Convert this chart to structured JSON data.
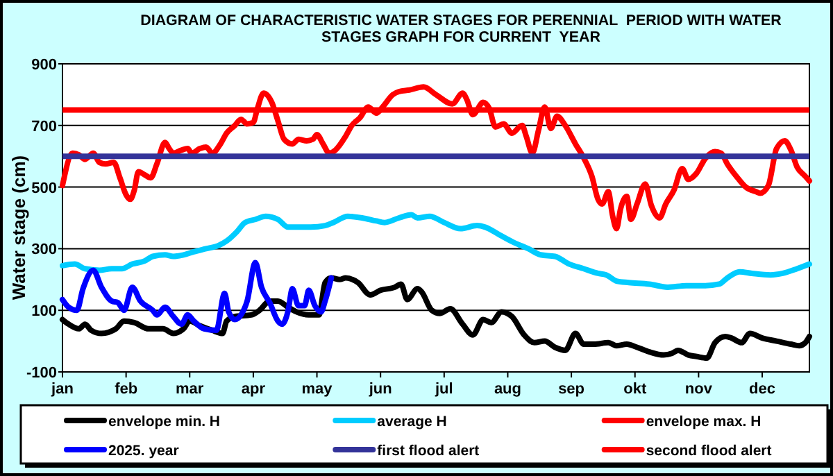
{
  "chart_data": {
    "type": "line",
    "title": "DIAGRAM OF CHARACTERISTIC WATER STAGES FOR PERENNIAL  PERIOD WITH WATER STAGES GRAPH FOR CURRENT  YEAR",
    "ylabel": "Water stage (cm)",
    "xlim": [
      "--01-01",
      "--12-31"
    ],
    "xticks": [
      {
        "value": "--01-01",
        "label": "jan"
      },
      {
        "value": "--02-01",
        "label": "feb"
      },
      {
        "value": "--03-04",
        "label": "mar"
      },
      {
        "value": "--04-04",
        "label": "apr"
      },
      {
        "value": "--05-05",
        "label": "may"
      },
      {
        "value": "--06-05",
        "label": "jun"
      },
      {
        "value": "--07-06",
        "label": "jul"
      },
      {
        "value": "--08-06",
        "label": "aug"
      },
      {
        "value": "--09-06",
        "label": "sep"
      },
      {
        "value": "--10-07",
        "label": "okt"
      },
      {
        "value": "--11-07",
        "label": "nov"
      },
      {
        "value": "--12-08",
        "label": "dec"
      }
    ],
    "ylim": [
      -100,
      900
    ],
    "yticks": [
      -100,
      100,
      300,
      500,
      700,
      900
    ],
    "grid": "y",
    "legend": "bottom",
    "series": [
      {
        "name": "envelope min. H",
        "color": "#000000",
        "x": [
          "--01-01",
          "--01-04",
          "--01-09",
          "--01-12",
          "--01-15",
          "--01-20",
          "--01-27",
          "--01-31",
          "--02-05",
          "--02-12",
          "--02-19",
          "--02-24",
          "--03-01",
          "--03-04",
          "--03-09",
          "--03-15",
          "--03-20",
          "--03-22",
          "--03-26",
          "--04-03",
          "--04-07",
          "--04-12",
          "--04-16",
          "--04-21",
          "--04-25",
          "--05-01",
          "--05-06",
          "--05-09",
          "--05-12",
          "--05-16",
          "--05-19",
          "--05-25",
          "--05-31",
          "--06-05",
          "--06-12",
          "--06-15",
          "--06-18",
          "--06-23",
          "--06-25",
          "--06-30",
          "--07-04",
          "--07-09",
          "--07-15",
          "--07-20",
          "--07-25",
          "--07-29",
          "--08-03",
          "--08-08",
          "--08-14",
          "--08-19",
          "--08-24",
          "--08-29",
          "--09-03",
          "--09-08",
          "--09-12",
          "--09-17",
          "--09-24",
          "--09-28",
          "--10-03",
          "--10-08",
          "--10-14",
          "--10-21",
          "--10-25",
          "--10-28",
          "--11-02",
          "--11-06",
          "--11-11",
          "--11-15",
          "--11-20",
          "--11-23",
          "--11-28",
          "--12-02",
          "--12-08",
          "--12-15",
          "--12-22",
          "--12-26",
          "--12-29",
          "--12-31"
        ],
        "values": [
          70,
          55,
          40,
          55,
          35,
          25,
          40,
          65,
          60,
          40,
          40,
          25,
          40,
          65,
          50,
          35,
          25,
          65,
          80,
          85,
          100,
          130,
          130,
          110,
          95,
          85,
          85,
          190,
          205,
          200,
          205,
          190,
          150,
          165,
          175,
          185,
          135,
          170,
          160,
          100,
          90,
          105,
          55,
          20,
          70,
          60,
          95,
          80,
          20,
          -5,
          0,
          -20,
          -30,
          25,
          -10,
          -10,
          -5,
          -15,
          -10,
          -20,
          -35,
          -45,
          -40,
          -30,
          -45,
          -50,
          -55,
          -5,
          15,
          10,
          -5,
          25,
          10,
          0,
          -10,
          -15,
          -5,
          15
        ]
      },
      {
        "name": "average H",
        "color": "#00ccff",
        "x": [
          "--01-01",
          "--01-07",
          "--01-12",
          "--01-19",
          "--01-25",
          "--01-30",
          "--02-04",
          "--02-10",
          "--02-14",
          "--02-20",
          "--02-24",
          "--03-01",
          "--03-06",
          "--03-12",
          "--03-18",
          "--03-22",
          "--03-27",
          "--03-31",
          "--04-05",
          "--04-10",
          "--04-16",
          "--04-21",
          "--04-25",
          "--05-02",
          "--05-09",
          "--05-13",
          "--05-20",
          "--05-27",
          "--06-03",
          "--06-07",
          "--06-14",
          "--06-20",
          "--06-23",
          "--06-29",
          "--07-06",
          "--07-14",
          "--07-22",
          "--07-26",
          "--08-02",
          "--08-09",
          "--08-16",
          "--08-22",
          "--08-29",
          "--09-05",
          "--09-12",
          "--09-19",
          "--09-23",
          "--09-28",
          "--10-04",
          "--10-14",
          "--10-23",
          "--11-01",
          "--11-10",
          "--11-17",
          "--11-21",
          "--11-27",
          "--12-03",
          "--12-12",
          "--12-18",
          "--12-25",
          "--12-31"
        ],
        "values": [
          245,
          250,
          235,
          230,
          235,
          235,
          250,
          260,
          275,
          280,
          275,
          280,
          290,
          300,
          310,
          325,
          355,
          385,
          395,
          405,
          395,
          370,
          370,
          370,
          375,
          385,
          405,
          400,
          390,
          385,
          400,
          410,
          400,
          405,
          385,
          365,
          375,
          370,
          345,
          320,
          300,
          280,
          275,
          250,
          235,
          220,
          215,
          195,
          190,
          185,
          175,
          180,
          180,
          185,
          205,
          225,
          220,
          215,
          220,
          235,
          250
        ]
      },
      {
        "name": "envelope max. H",
        "color": "#ff0000",
        "x": [
          "--01-01",
          "--01-06",
          "--01-09",
          "--01-12",
          "--01-16",
          "--01-19",
          "--01-22",
          "--01-26",
          "--01-29",
          "--02-01",
          "--02-03",
          "--02-05",
          "--02-07",
          "--02-10",
          "--02-13",
          "--02-16",
          "--02-20",
          "--02-22",
          "--02-24",
          "--02-28",
          "--03-03",
          "--03-05",
          "--03-09",
          "--03-12",
          "--03-15",
          "--03-19",
          "--03-22",
          "--03-26",
          "--03-29",
          "--04-01",
          "--04-04",
          "--04-06",
          "--04-09",
          "--04-13",
          "--04-16",
          "--04-19",
          "--04-23",
          "--04-26",
          "--04-30",
          "--05-03",
          "--05-05",
          "--05-08",
          "--05-11",
          "--05-14",
          "--05-19",
          "--05-22",
          "--05-26",
          "--05-30",
          "--06-03",
          "--06-06",
          "--06-11",
          "--06-14",
          "--06-19",
          "--06-26",
          "--07-02",
          "--07-10",
          "--07-15",
          "--07-17",
          "--07-20",
          "--07-25",
          "--07-28",
          "--07-31",
          "--08-04",
          "--08-08",
          "--08-13",
          "--08-15",
          "--08-18",
          "--08-21",
          "--08-24",
          "--08-27",
          "--08-30",
          "--09-03",
          "--09-08",
          "--09-12",
          "--09-16",
          "--09-19",
          "--09-21",
          "--09-24",
          "--09-26",
          "--09-28",
          "--09-30",
          "--10-03",
          "--10-05",
          "--10-08",
          "--10-12",
          "--10-15",
          "--10-19",
          "--10-22",
          "--10-26",
          "--10-30",
          "--11-02",
          "--11-06",
          "--11-10",
          "--11-15",
          "--11-18",
          "--11-21",
          "--11-26",
          "--11-30",
          "--12-05",
          "--12-07",
          "--12-11",
          "--12-15",
          "--12-19",
          "--12-22",
          "--12-25",
          "--12-29",
          "--12-31"
        ],
        "values": [
          505,
          610,
          605,
          590,
          610,
          580,
          575,
          580,
          530,
          475,
          460,
          490,
          550,
          540,
          530,
          575,
          645,
          625,
          610,
          620,
          625,
          610,
          625,
          630,
          610,
          640,
          675,
          700,
          720,
          705,
          710,
          755,
          805,
          775,
          715,
          655,
          640,
          655,
          650,
          655,
          670,
          640,
          610,
          620,
          665,
          700,
          725,
          760,
          740,
          760,
          800,
          810,
          815,
          825,
          800,
          770,
          805,
          785,
          735,
          775,
          755,
          695,
          705,
          675,
          700,
          665,
          610,
          685,
          760,
          690,
          730,
          700,
          640,
          595,
          535,
          460,
          445,
          485,
          410,
          365,
          430,
          470,
          395,
          445,
          510,
          440,
          400,
          445,
          490,
          560,
          525,
          545,
          590,
          615,
          610,
          575,
          530,
          500,
          485,
          480,
          505,
          625,
          650,
          620,
          565,
          535,
          520
        ]
      },
      {
        "name": "2025. year",
        "color": "#0000ff",
        "x": [
          "--01-01",
          "--01-04",
          "--01-08",
          "--01-11",
          "--01-16",
          "--01-20",
          "--01-25",
          "--01-28",
          "--01-31",
          "--02-04",
          "--02-08",
          "--02-14",
          "--02-16",
          "--02-20",
          "--02-24",
          "--02-28",
          "--03-03",
          "--03-06",
          "--03-11",
          "--03-17",
          "--03-21",
          "--03-23",
          "--03-26",
          "--03-29",
          "--04-01",
          "--04-05",
          "--04-08",
          "--04-12",
          "--04-16",
          "--04-18",
          "--04-21",
          "--04-23",
          "--04-26",
          "--04-29",
          "--05-01",
          "--05-04",
          "--05-07",
          "--05-09",
          "--05-12"
        ],
        "values": [
          135,
          110,
          100,
          170,
          230,
          175,
          130,
          125,
          100,
          175,
          130,
          100,
          85,
          110,
          80,
          55,
          85,
          65,
          40,
          35,
          155,
          95,
          70,
          85,
          130,
          255,
          175,
          125,
          65,
          55,
          100,
          170,
          115,
          115,
          165,
          115,
          95,
          130,
          205
        ]
      }
    ],
    "ref_lines": [
      {
        "axis": "y",
        "value": 600,
        "label": "first flood alert",
        "color": "#333399"
      },
      {
        "axis": "y",
        "value": 750,
        "label": "second flood alert",
        "color": "#ff0000"
      }
    ]
  }
}
